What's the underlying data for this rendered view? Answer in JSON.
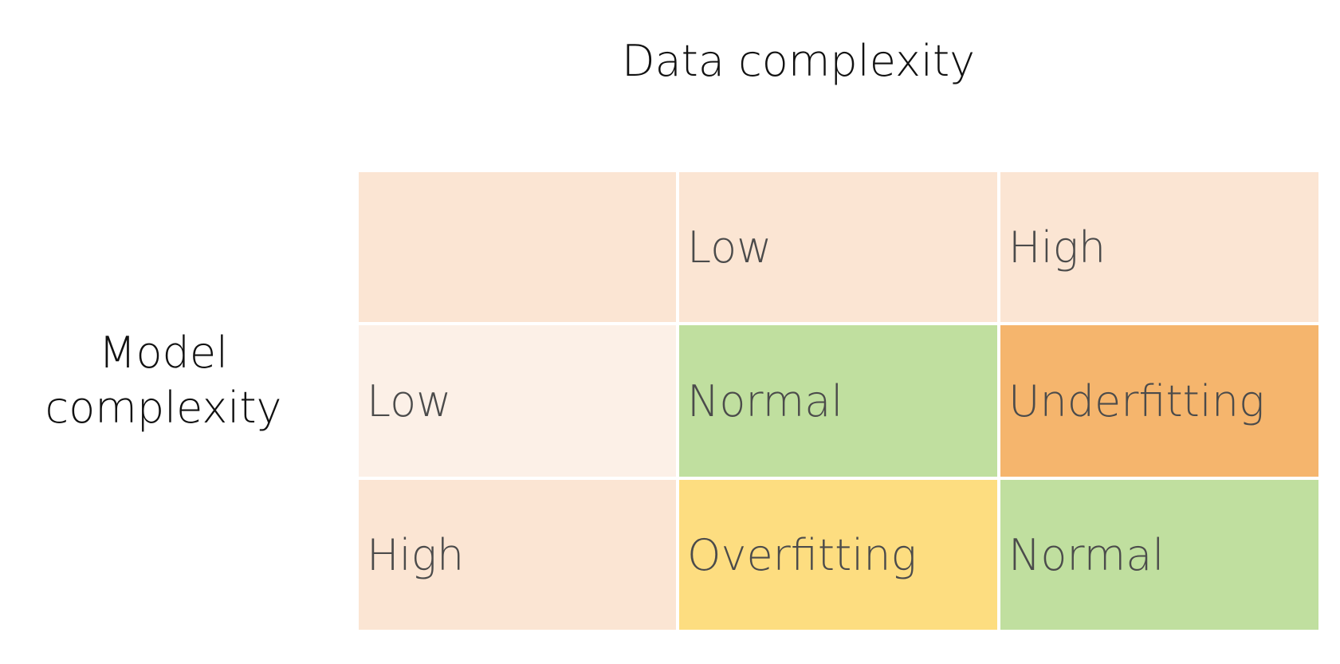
{
  "column_axis": {
    "title": "Data complexity"
  },
  "row_axis": {
    "title_line1": "Model",
    "title_line2": "complexity"
  },
  "header_row": {
    "corner": "",
    "low": "Low",
    "high": "High"
  },
  "rows": [
    {
      "label": "Low",
      "data_low": "Normal",
      "data_high": "Underfitting"
    },
    {
      "label": "High",
      "data_low": "Overfitting",
      "data_high": "Normal"
    }
  ],
  "colors": {
    "header_bg": "#fbe5d3",
    "row_low_label_bg": "#fcf0e7",
    "row_high_label_bg": "#fbe5d3",
    "normal": "#c0df9f",
    "underfitting": "#f5b56d",
    "overfitting": "#fddd80",
    "text": "#4b4b4b",
    "title_text": "#111111"
  }
}
